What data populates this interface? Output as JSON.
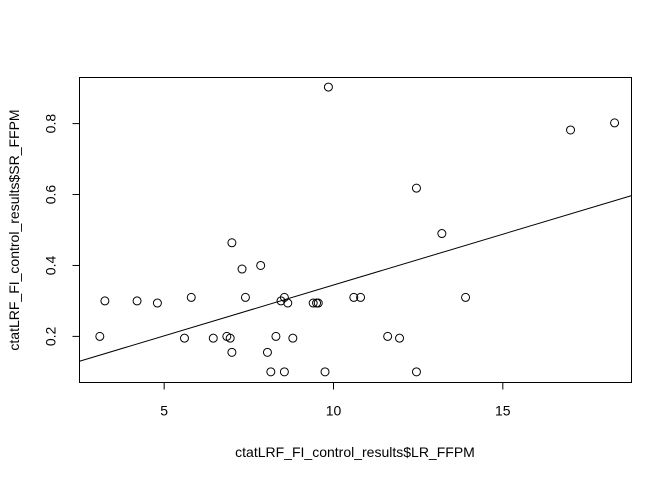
{
  "chart_data": {
    "type": "scatter",
    "title": "",
    "xlabel": "ctatLRF_FI_control_results$LR_FFPM",
    "ylabel": "ctatLRF_FI_control_results$SR_FFPM",
    "xlim": [
      2.5,
      18.8
    ],
    "ylim": [
      0.07,
      0.93
    ],
    "xticks": [
      5,
      10,
      15
    ],
    "xtick_labels": [
      "5",
      "10",
      "15"
    ],
    "yticks": [
      0.2,
      0.4,
      0.6,
      0.8
    ],
    "ytick_labels": [
      "0.2",
      "0.4",
      "0.6",
      "0.8"
    ],
    "grid": false,
    "legend": "none",
    "points": [
      {
        "x": 3.1,
        "y": 0.2
      },
      {
        "x": 3.25,
        "y": 0.3
      },
      {
        "x": 4.2,
        "y": 0.3
      },
      {
        "x": 4.8,
        "y": 0.294
      },
      {
        "x": 5.6,
        "y": 0.195
      },
      {
        "x": 5.8,
        "y": 0.31
      },
      {
        "x": 6.45,
        "y": 0.195
      },
      {
        "x": 6.85,
        "y": 0.2
      },
      {
        "x": 6.95,
        "y": 0.195
      },
      {
        "x": 7.0,
        "y": 0.155
      },
      {
        "x": 7.0,
        "y": 0.464
      },
      {
        "x": 7.3,
        "y": 0.39
      },
      {
        "x": 7.4,
        "y": 0.31
      },
      {
        "x": 7.85,
        "y": 0.4
      },
      {
        "x": 8.05,
        "y": 0.155
      },
      {
        "x": 8.15,
        "y": 0.1
      },
      {
        "x": 8.3,
        "y": 0.2
      },
      {
        "x": 8.45,
        "y": 0.3
      },
      {
        "x": 8.55,
        "y": 0.31
      },
      {
        "x": 8.55,
        "y": 0.1
      },
      {
        "x": 8.65,
        "y": 0.294
      },
      {
        "x": 8.8,
        "y": 0.195
      },
      {
        "x": 9.4,
        "y": 0.294
      },
      {
        "x": 9.5,
        "y": 0.294
      },
      {
        "x": 9.55,
        "y": 0.294
      },
      {
        "x": 9.75,
        "y": 0.1
      },
      {
        "x": 9.85,
        "y": 0.903
      },
      {
        "x": 10.6,
        "y": 0.31
      },
      {
        "x": 10.8,
        "y": 0.31
      },
      {
        "x": 11.6,
        "y": 0.2
      },
      {
        "x": 11.95,
        "y": 0.195
      },
      {
        "x": 12.45,
        "y": 0.1
      },
      {
        "x": 12.45,
        "y": 0.618
      },
      {
        "x": 13.2,
        "y": 0.49
      },
      {
        "x": 13.9,
        "y": 0.31
      },
      {
        "x": 17.0,
        "y": 0.782
      },
      {
        "x": 18.3,
        "y": 0.802
      }
    ],
    "fit_line": {
      "x": [
        2.5,
        18.8
      ],
      "y": [
        0.13,
        0.597
      ]
    }
  }
}
